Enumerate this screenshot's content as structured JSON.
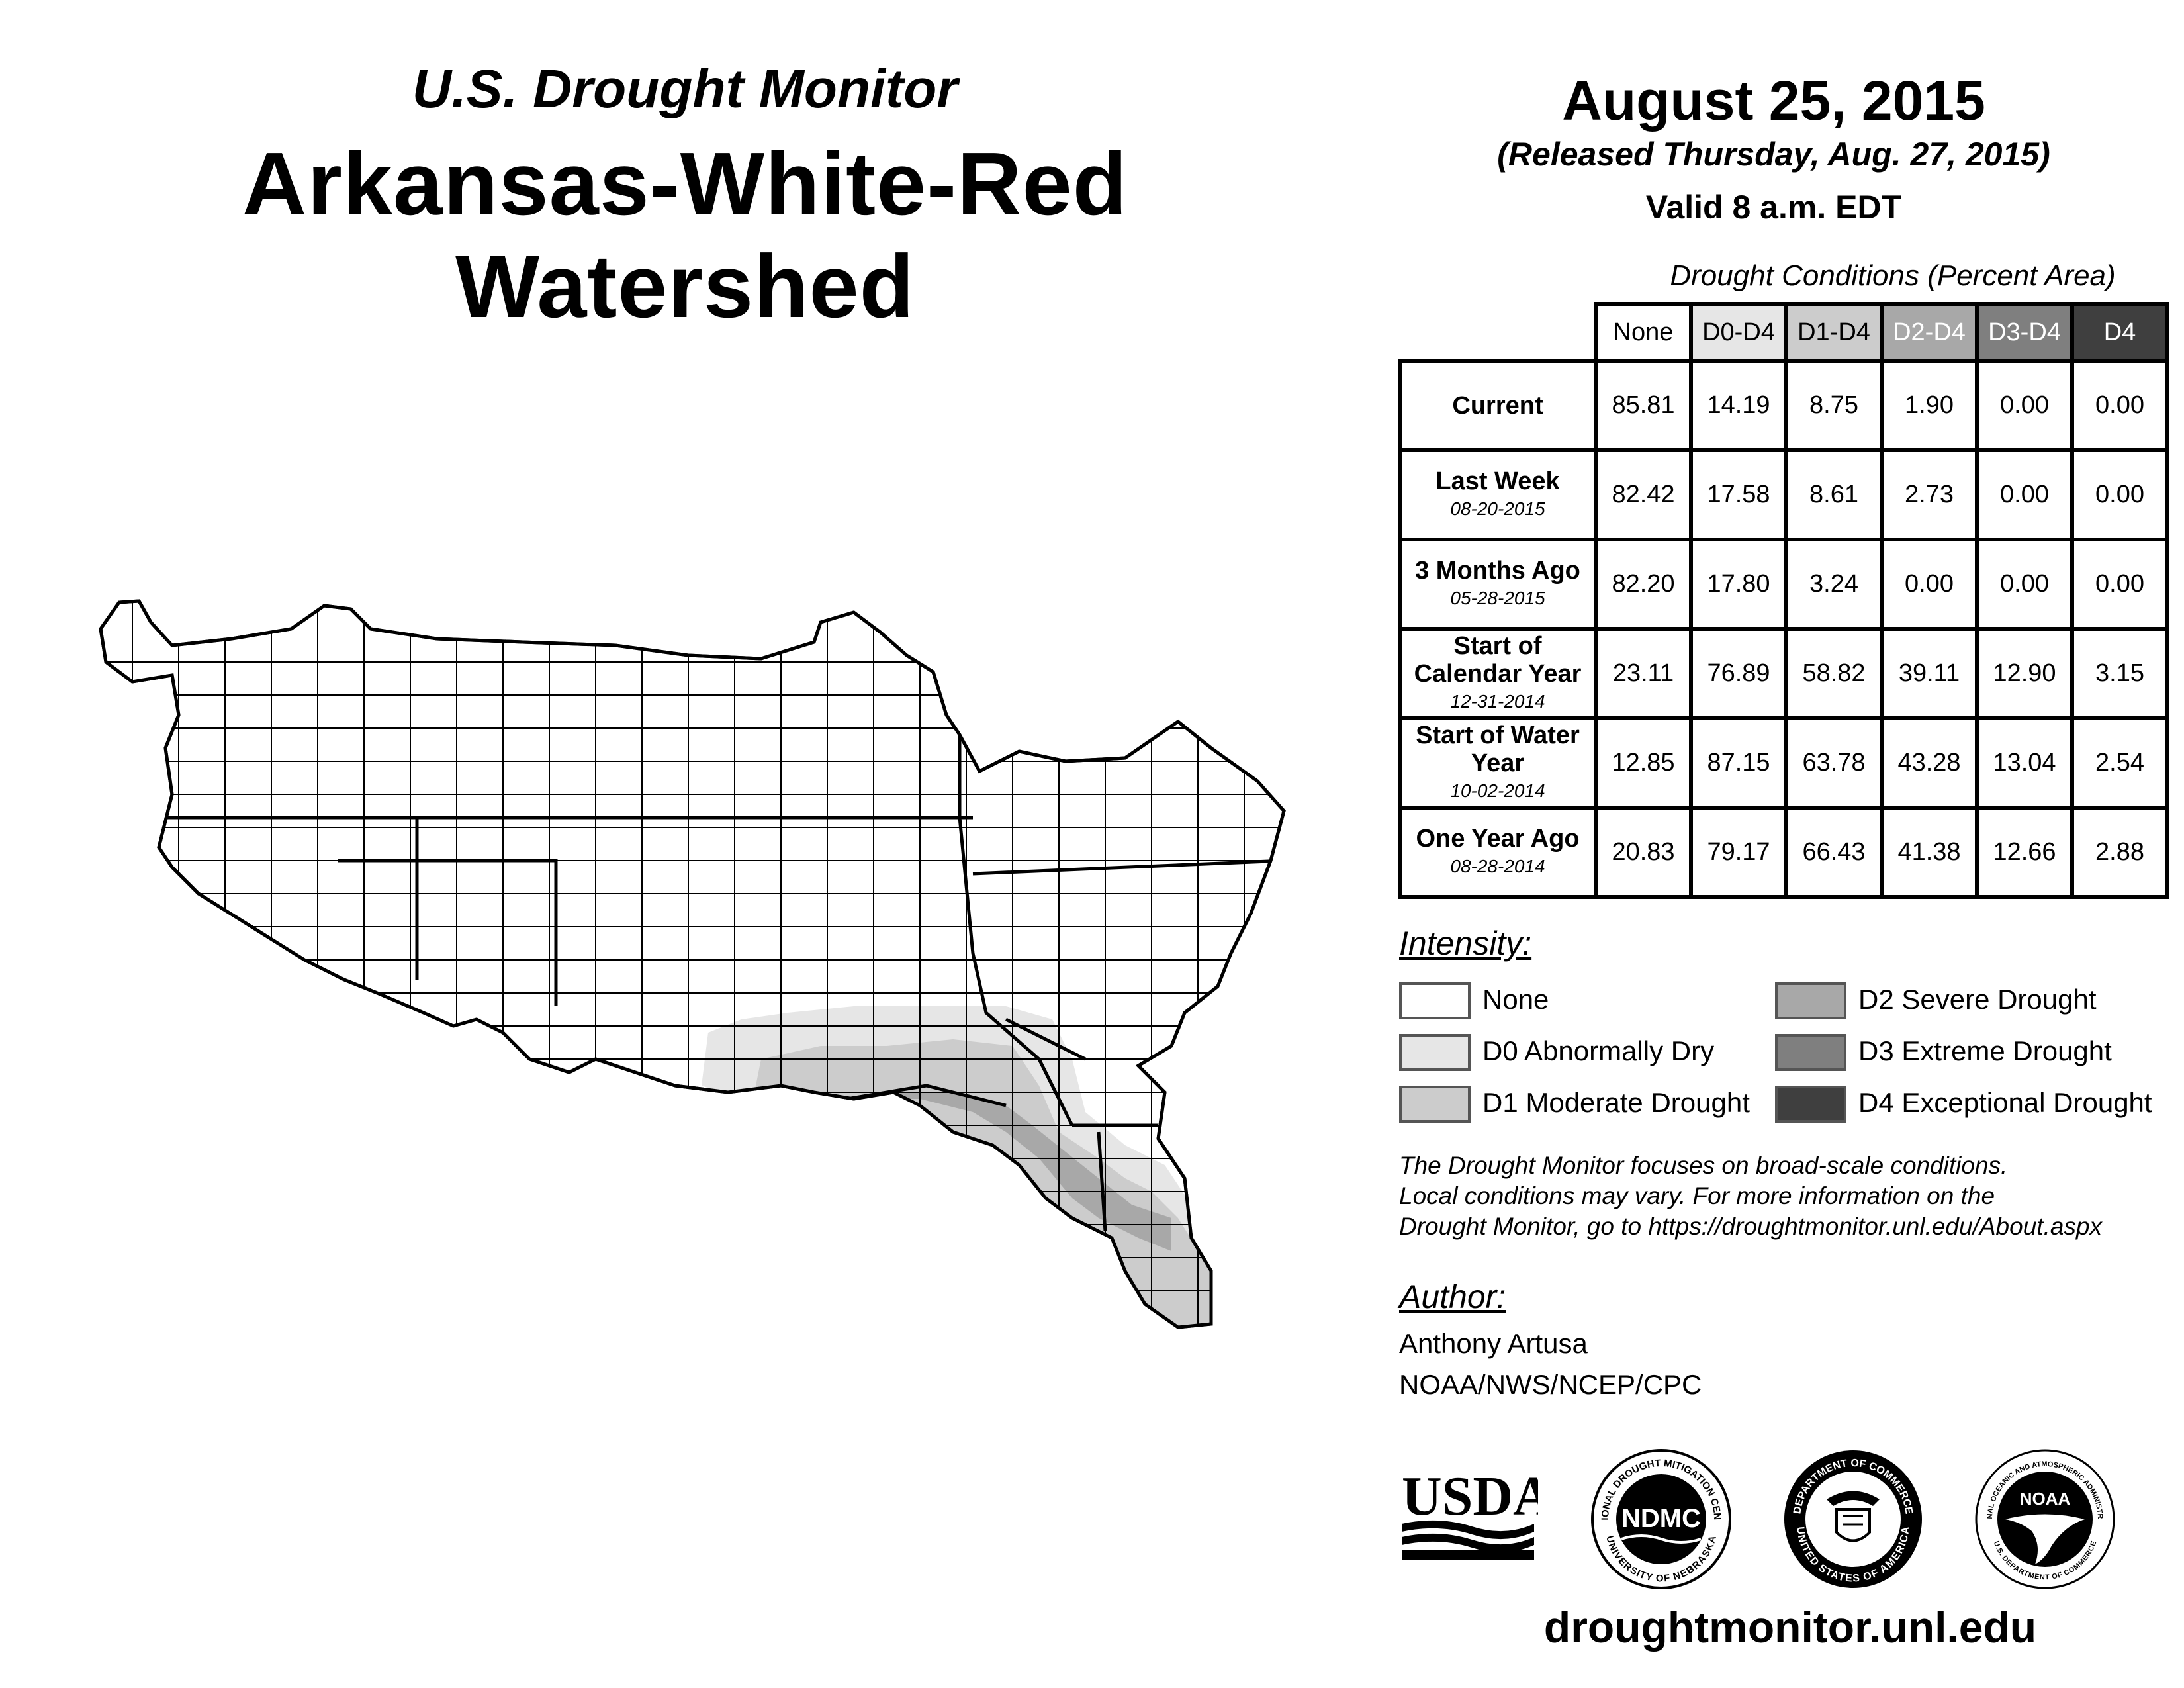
{
  "header": {
    "subtitle": "U.S. Drought Monitor",
    "title": "Arkansas-White-Red Watershed",
    "date": "August 25, 2015",
    "released": "(Released Thursday, Aug. 27, 2015)",
    "valid": "Valid 8 a.m. EDT"
  },
  "table": {
    "caption": "Drought Conditions (Percent Area)",
    "columns": [
      "None",
      "D0-D4",
      "D1-D4",
      "D2-D4",
      "D3-D4",
      "D4"
    ],
    "rows": [
      {
        "label": "Current",
        "date": "",
        "values": [
          "85.81",
          "14.19",
          "8.75",
          "1.90",
          "0.00",
          "0.00"
        ]
      },
      {
        "label": "Last Week",
        "date": "08-20-2015",
        "values": [
          "82.42",
          "17.58",
          "8.61",
          "2.73",
          "0.00",
          "0.00"
        ]
      },
      {
        "label": "3 Months Ago",
        "date": "05-28-2015",
        "values": [
          "82.20",
          "17.80",
          "3.24",
          "0.00",
          "0.00",
          "0.00"
        ]
      },
      {
        "label": "Start of Calendar Year",
        "date": "12-31-2014",
        "values": [
          "23.11",
          "76.89",
          "58.82",
          "39.11",
          "12.90",
          "3.15"
        ]
      },
      {
        "label": "Start of Water Year",
        "date": "10-02-2014",
        "values": [
          "12.85",
          "87.15",
          "63.78",
          "43.28",
          "13.04",
          "2.54"
        ]
      },
      {
        "label": "One Year Ago",
        "date": "08-28-2014",
        "values": [
          "20.83",
          "79.17",
          "66.43",
          "41.38",
          "12.66",
          "2.88"
        ]
      }
    ]
  },
  "legend": {
    "title": "Intensity:",
    "items": [
      {
        "label": "None",
        "color": "#ffffff"
      },
      {
        "label": "D0 Abnormally Dry",
        "color": "#e6e6e6"
      },
      {
        "label": "D1 Moderate Drought",
        "color": "#cccccc"
      },
      {
        "label": "D2 Severe Drought",
        "color": "#a8a8a8"
      },
      {
        "label": "D3 Extreme Drought",
        "color": "#7f7f7f"
      },
      {
        "label": "D4 Exceptional Drought",
        "color": "#3f3f3f"
      }
    ]
  },
  "note": {
    "line1": "The Drought Monitor focuses on broad-scale conditions.",
    "line2": "Local conditions may vary. For more information on the",
    "line3": "Drought Monitor, go to https://droughtmonitor.unl.edu/About.aspx"
  },
  "author": {
    "title": "Author:",
    "name": "Anthony Artusa",
    "org": "NOAA/NWS/NCEP/CPC"
  },
  "logos": {
    "usda": "USDA",
    "ndmc": "NDMC",
    "ndmc_ring_top": "NATIONAL DROUGHT MITIGATION CENTER",
    "ndmc_ring_bottom": "UNIVERSITY OF NEBRASKA",
    "doc_ring_top": "DEPARTMENT OF COMMERCE",
    "doc_ring_bottom": "UNITED STATES OF AMERICA",
    "noaa": "NOAA",
    "noaa_ring_top": "NATIONAL OCEANIC AND ATMOSPHERIC ADMINISTRATION",
    "noaa_ring_bottom": "U.S. DEPARTMENT OF COMMERCE"
  },
  "footer": {
    "url": "droughtmonitor.unl.edu"
  }
}
